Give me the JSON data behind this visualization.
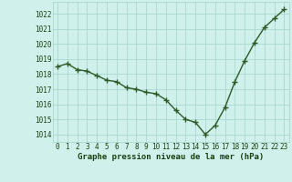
{
  "x": [
    0,
    1,
    2,
    3,
    4,
    5,
    6,
    7,
    8,
    9,
    10,
    11,
    12,
    13,
    14,
    15,
    16,
    17,
    18,
    19,
    20,
    21,
    22,
    23
  ],
  "y": [
    1018.5,
    1018.7,
    1018.3,
    1018.2,
    1017.9,
    1017.6,
    1017.5,
    1017.1,
    1017.0,
    1016.8,
    1016.7,
    1016.3,
    1015.6,
    1015.0,
    1014.8,
    1014.0,
    1014.6,
    1015.8,
    1017.5,
    1018.9,
    1020.1,
    1021.1,
    1021.7,
    1022.3
  ],
  "line_color": "#2d5a27",
  "marker": "+",
  "marker_size": 4.0,
  "background_color": "#cff0eb",
  "grid_color": "#a8d8d0",
  "title": "Graphe pression niveau de la mer (hPa)",
  "xlim": [
    -0.5,
    23.5
  ],
  "ylim": [
    1013.5,
    1022.8
  ],
  "yticks": [
    1014,
    1015,
    1016,
    1017,
    1018,
    1019,
    1020,
    1021,
    1022
  ],
  "xticks": [
    0,
    1,
    2,
    3,
    4,
    5,
    6,
    7,
    8,
    9,
    10,
    11,
    12,
    13,
    14,
    15,
    16,
    17,
    18,
    19,
    20,
    21,
    22,
    23
  ],
  "title_fontsize": 6.5,
  "tick_fontsize": 5.5,
  "title_color": "#1a4010",
  "tick_color": "#1a4010",
  "line_width": 1.0
}
